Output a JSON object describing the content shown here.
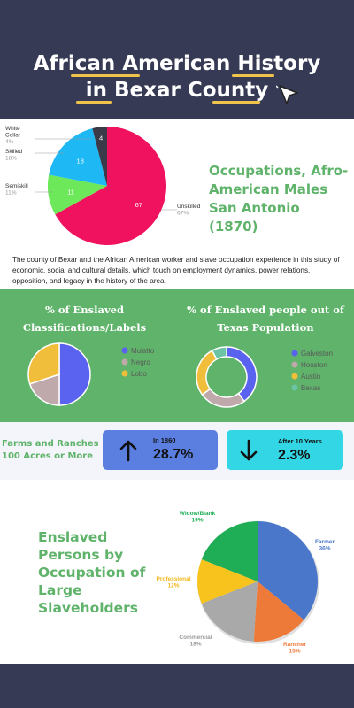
{
  "header": {
    "title_line1": "African American History",
    "title_line2": "in Bexar County"
  },
  "occupations_1870": {
    "title": "Occupations, Afro-American Males San Antonio (1870)",
    "description": "The county of Bexar and the African American worker and slave occupation experience in this study of economic, social and cultural details, which touch on employment dynamics, power relations, opposition, and legacy in the history of the area."
  },
  "enslaved_classifications": {
    "title": "% of Enslaved Classifications/Labels"
  },
  "enslaved_texas": {
    "title": "% of Enslaved people out of Texas Population"
  },
  "farms": {
    "label": "Farms and Ranches 100 Acres or More",
    "card1_label": "In 1860",
    "card1_value": "28.7%",
    "card1_color": "#5b7fe0",
    "card2_label": "After 10 Years",
    "card2_value": "2.3%",
    "card2_color": "#33d6e4"
  },
  "large_slaveholders": {
    "title": "Enslaved Persons by Occupation of Large Slaveholders"
  },
  "chart_data": [
    {
      "type": "pie",
      "categories": [
        "Unskilled",
        "Semiskill",
        "Skilled",
        "White Collar"
      ],
      "values": [
        67,
        11,
        18,
        4
      ],
      "slice_labels": [
        "67",
        "11",
        "18",
        "4"
      ],
      "category_labels": [
        "Unskilled\n67%",
        "Semiskill\n11%",
        "Skilled\n18%",
        "White\nCollar\n4%"
      ],
      "colors": [
        "#f0125e",
        "#6de85a",
        "#1eb8f5",
        "#3a3a48"
      ]
    },
    {
      "type": "pie",
      "categories": [
        "Mulatto",
        "Negro",
        "Lobo"
      ],
      "values": [
        50,
        20,
        30
      ],
      "colors": [
        "#5a63f0",
        "#c0a9ab",
        "#f1be3c"
      ]
    },
    {
      "type": "pie",
      "categories": [
        "Galveston",
        "Houston",
        "Austin",
        "Bexas"
      ],
      "values": [
        40,
        25,
        27,
        8
      ],
      "colors": [
        "#5a63f0",
        "#c0a9ab",
        "#f1be3c",
        "#6cc4a4"
      ]
    },
    {
      "type": "pie",
      "categories": [
        "Farmer",
        "Rancher",
        "Commercial",
        "Professional",
        "Widow/Blank"
      ],
      "values": [
        36,
        15,
        18,
        12,
        19
      ],
      "category_labels": [
        "Farmer\n36%",
        "Rancher\n15%",
        "Commercial\n18%",
        "Professional\n12%",
        "Widow/Blank\n19%"
      ],
      "colors": [
        "#4a77c9",
        "#ee7a3a",
        "#a9a9a9",
        "#f7c31c",
        "#1fad56"
      ],
      "label_colors": [
        "#4a77c9",
        "#ee7a3a",
        "#9a9a9a",
        "#f0b81c",
        "#1fad56"
      ]
    }
  ]
}
